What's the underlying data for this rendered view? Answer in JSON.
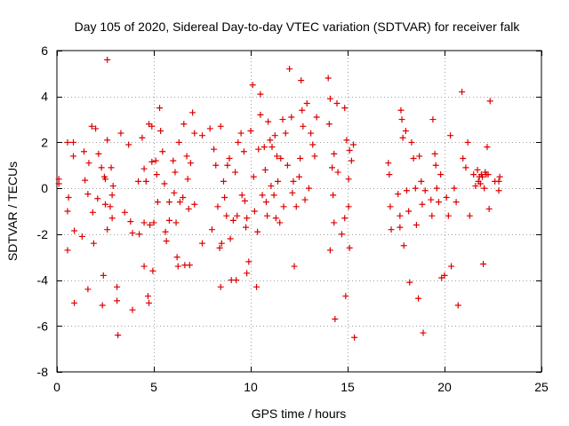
{
  "chart_data": {
    "type": "scatter",
    "title": "Day 105 of 2020, Sidereal Day-to-day VTEC variation (SDTVAR) for receiver falk",
    "xlabel": "GPS time / hours",
    "ylabel": "SDTVAR / TECUs",
    "xlim": [
      0,
      25
    ],
    "ylim": [
      -8,
      6
    ],
    "xticks": [
      0,
      5,
      10,
      15,
      20,
      25
    ],
    "yticks": [
      -8,
      -6,
      -4,
      -2,
      0,
      2,
      4,
      6
    ],
    "grid": true,
    "marker": "plus",
    "color": "#dd0000",
    "series": [
      {
        "name": "SDTVAR",
        "points": [
          [
            0.1,
            0.4
          ],
          [
            0.1,
            0.2
          ],
          [
            0.55,
            2.0
          ],
          [
            0.55,
            -1.0
          ],
          [
            0.55,
            -2.7
          ],
          [
            0.6,
            -0.4
          ],
          [
            0.85,
            2.0
          ],
          [
            0.85,
            1.4
          ],
          [
            0.9,
            -1.85
          ],
          [
            0.9,
            -5.0
          ],
          [
            1.3,
            -2.1
          ],
          [
            1.4,
            1.6
          ],
          [
            1.45,
            0.35
          ],
          [
            1.6,
            -0.25
          ],
          [
            1.6,
            -4.4
          ],
          [
            1.65,
            1.1
          ],
          [
            1.8,
            2.7
          ],
          [
            1.85,
            -1.05
          ],
          [
            1.9,
            -2.4
          ],
          [
            2.0,
            2.6
          ],
          [
            2.1,
            -0.45
          ],
          [
            2.15,
            1.5
          ],
          [
            2.3,
            0.9
          ],
          [
            2.35,
            -5.1
          ],
          [
            2.4,
            -3.8
          ],
          [
            2.45,
            0.5
          ],
          [
            2.5,
            0.4
          ],
          [
            2.5,
            -0.7
          ],
          [
            2.6,
            5.6
          ],
          [
            2.6,
            2.1
          ],
          [
            2.6,
            -1.8
          ],
          [
            2.75,
            -0.8
          ],
          [
            2.8,
            0.9
          ],
          [
            2.85,
            -0.3
          ],
          [
            2.85,
            -1.3
          ],
          [
            2.9,
            0.1
          ],
          [
            3.1,
            -4.3
          ],
          [
            3.1,
            -4.9
          ],
          [
            3.15,
            -6.4
          ],
          [
            3.3,
            2.4
          ],
          [
            3.5,
            -1.05
          ],
          [
            3.7,
            1.9
          ],
          [
            3.8,
            -1.45
          ],
          [
            3.9,
            -5.3
          ],
          [
            3.9,
            -1.95
          ],
          [
            4.2,
            0.3
          ],
          [
            4.25,
            -2.0
          ],
          [
            4.4,
            2.2
          ],
          [
            4.5,
            0.85
          ],
          [
            4.5,
            -3.4
          ],
          [
            4.5,
            -1.5
          ],
          [
            4.6,
            0.3
          ],
          [
            4.7,
            -4.7
          ],
          [
            4.75,
            -5.0
          ],
          [
            4.75,
            2.8
          ],
          [
            4.8,
            -1.6
          ],
          [
            4.9,
            2.7
          ],
          [
            4.9,
            1.15
          ],
          [
            4.95,
            -3.6
          ],
          [
            5.0,
            -1.5
          ],
          [
            5.1,
            1.2
          ],
          [
            5.15,
            0.6
          ],
          [
            5.2,
            -0.6
          ],
          [
            5.3,
            3.5
          ],
          [
            5.35,
            2.5
          ],
          [
            5.45,
            1.6
          ],
          [
            5.55,
            0.2
          ],
          [
            5.6,
            -1.9
          ],
          [
            5.65,
            -2.3
          ],
          [
            5.8,
            -0.6
          ],
          [
            5.8,
            -1.4
          ],
          [
            6.0,
            1.2
          ],
          [
            6.05,
            -0.2
          ],
          [
            6.1,
            0.7
          ],
          [
            6.15,
            -1.5
          ],
          [
            6.2,
            -3.0
          ],
          [
            6.25,
            -3.4
          ],
          [
            6.3,
            2.0
          ],
          [
            6.35,
            -0.6
          ],
          [
            6.5,
            -0.4
          ],
          [
            6.55,
            2.8
          ],
          [
            6.6,
            -3.35
          ],
          [
            6.7,
            1.4
          ],
          [
            6.75,
            0.4
          ],
          [
            6.8,
            -0.9
          ],
          [
            6.85,
            -3.35
          ],
          [
            6.9,
            1.1
          ],
          [
            7.0,
            3.3
          ],
          [
            7.1,
            2.4
          ],
          [
            7.1,
            -0.7
          ],
          [
            7.5,
            2.3
          ],
          [
            7.5,
            -2.4
          ],
          [
            7.9,
            2.6
          ],
          [
            8.0,
            -1.8
          ],
          [
            8.1,
            1.7
          ],
          [
            8.2,
            1.0
          ],
          [
            8.3,
            -0.8
          ],
          [
            8.4,
            -2.6
          ],
          [
            8.45,
            2.7
          ],
          [
            8.45,
            -4.3
          ],
          [
            8.5,
            -2.4
          ],
          [
            8.6,
            0.3
          ],
          [
            8.65,
            -0.4
          ],
          [
            8.75,
            -1.2
          ],
          [
            8.8,
            1.0
          ],
          [
            8.9,
            1.3
          ],
          [
            8.95,
            -2.2
          ],
          [
            9.0,
            -4.0
          ],
          [
            9.1,
            -1.4
          ],
          [
            9.2,
            0.7
          ],
          [
            9.25,
            -4.0
          ],
          [
            9.3,
            -1.2
          ],
          [
            9.35,
            2.0
          ],
          [
            9.5,
            2.4
          ],
          [
            9.55,
            -0.3
          ],
          [
            9.65,
            1.6
          ],
          [
            9.7,
            -0.55
          ],
          [
            9.75,
            -1.7
          ],
          [
            9.8,
            -3.7
          ],
          [
            9.8,
            -1.3
          ],
          [
            9.9,
            -3.2
          ],
          [
            10.0,
            2.5
          ],
          [
            10.1,
            4.5
          ],
          [
            10.15,
            0.5
          ],
          [
            10.2,
            -1.0
          ],
          [
            10.3,
            -4.3
          ],
          [
            10.35,
            -1.9
          ],
          [
            10.4,
            1.7
          ],
          [
            10.5,
            3.2
          ],
          [
            10.5,
            4.1
          ],
          [
            10.6,
            -0.3
          ],
          [
            10.7,
            1.8
          ],
          [
            10.75,
            0.8
          ],
          [
            10.8,
            -0.6
          ],
          [
            10.85,
            -1.2
          ],
          [
            10.9,
            2.9
          ],
          [
            11.0,
            2.1
          ],
          [
            11.05,
            0.1
          ],
          [
            11.1,
            1.8
          ],
          [
            11.2,
            -0.3
          ],
          [
            11.25,
            2.3
          ],
          [
            11.3,
            -1.3
          ],
          [
            11.35,
            1.4
          ],
          [
            11.4,
            0.3
          ],
          [
            11.5,
            -1.5
          ],
          [
            11.55,
            1.3
          ],
          [
            11.65,
            3.0
          ],
          [
            11.7,
            -0.8
          ],
          [
            11.8,
            2.4
          ],
          [
            11.9,
            1.0
          ],
          [
            12.0,
            5.2
          ],
          [
            12.1,
            3.1
          ],
          [
            12.15,
            -0.2
          ],
          [
            12.2,
            0.3
          ],
          [
            12.25,
            -3.4
          ],
          [
            12.35,
            -0.8
          ],
          [
            12.5,
            0.5
          ],
          [
            12.55,
            1.3
          ],
          [
            12.6,
            4.7
          ],
          [
            12.65,
            3.4
          ],
          [
            12.7,
            2.7
          ],
          [
            12.8,
            -0.5
          ],
          [
            12.9,
            3.7
          ],
          [
            13.0,
            0.0
          ],
          [
            13.1,
            2.4
          ],
          [
            13.2,
            1.9
          ],
          [
            13.3,
            1.4
          ],
          [
            13.4,
            3.1
          ],
          [
            14.0,
            4.8
          ],
          [
            14.05,
            2.8
          ],
          [
            14.1,
            3.9
          ],
          [
            14.1,
            -2.7
          ],
          [
            14.2,
            0.9
          ],
          [
            14.25,
            -0.3
          ],
          [
            14.3,
            1.5
          ],
          [
            14.3,
            -1.5
          ],
          [
            14.35,
            -5.7
          ],
          [
            14.45,
            3.7
          ],
          [
            14.5,
            0.7
          ],
          [
            14.7,
            -2.0
          ],
          [
            14.85,
            3.5
          ],
          [
            14.85,
            -1.3
          ],
          [
            14.9,
            -4.7
          ],
          [
            14.95,
            2.1
          ],
          [
            15.05,
            0.4
          ],
          [
            15.05,
            -0.8
          ],
          [
            15.1,
            1.65
          ],
          [
            15.1,
            -2.6
          ],
          [
            15.2,
            1.2
          ],
          [
            15.3,
            1.9
          ],
          [
            15.35,
            -6.5
          ],
          [
            17.1,
            1.1
          ],
          [
            17.15,
            0.6
          ],
          [
            17.2,
            -0.8
          ],
          [
            17.25,
            -1.8
          ],
          [
            17.6,
            -0.25
          ],
          [
            17.7,
            -1.2
          ],
          [
            17.7,
            -1.7
          ],
          [
            17.75,
            3.4
          ],
          [
            17.8,
            3.0
          ],
          [
            17.85,
            2.2
          ],
          [
            17.9,
            -2.5
          ],
          [
            18.0,
            2.5
          ],
          [
            18.05,
            -0.1
          ],
          [
            18.15,
            -1.0
          ],
          [
            18.2,
            -4.1
          ],
          [
            18.3,
            2.0
          ],
          [
            18.4,
            1.3
          ],
          [
            18.5,
            0.0
          ],
          [
            18.55,
            -1.6
          ],
          [
            18.65,
            -4.8
          ],
          [
            18.7,
            1.4
          ],
          [
            18.8,
            0.3
          ],
          [
            18.85,
            -0.7
          ],
          [
            18.9,
            -6.3
          ],
          [
            19.0,
            -0.1
          ],
          [
            19.3,
            -0.5
          ],
          [
            19.35,
            -1.2
          ],
          [
            19.4,
            3.0
          ],
          [
            19.5,
            1.5
          ],
          [
            19.55,
            1.0
          ],
          [
            19.6,
            0.0
          ],
          [
            19.7,
            -0.6
          ],
          [
            19.8,
            0.6
          ],
          [
            19.85,
            -3.9
          ],
          [
            20.0,
            -3.8
          ],
          [
            20.1,
            -0.4
          ],
          [
            20.2,
            -1.2
          ],
          [
            20.3,
            2.3
          ],
          [
            20.35,
            -3.4
          ],
          [
            20.5,
            0.0
          ],
          [
            20.6,
            -0.6
          ],
          [
            20.7,
            -5.1
          ],
          [
            20.9,
            4.2
          ],
          [
            20.95,
            1.3
          ],
          [
            21.1,
            0.9
          ],
          [
            21.2,
            2.0
          ],
          [
            21.3,
            -1.2
          ],
          [
            21.5,
            0.6
          ],
          [
            21.6,
            0.1
          ],
          [
            21.7,
            0.8
          ],
          [
            21.75,
            0.3
          ],
          [
            21.8,
            0.5
          ],
          [
            21.85,
            0.2
          ],
          [
            21.9,
            0.6
          ],
          [
            21.95,
            0.5
          ],
          [
            22.0,
            -3.3
          ],
          [
            22.05,
            0.0
          ],
          [
            22.1,
            0.7
          ],
          [
            22.15,
            0.6
          ],
          [
            22.2,
            1.8
          ],
          [
            22.25,
            0.6
          ],
          [
            22.3,
            -0.9
          ],
          [
            22.35,
            3.8
          ],
          [
            22.6,
            0.3
          ],
          [
            22.8,
            0.3
          ],
          [
            22.8,
            -0.1
          ],
          [
            22.85,
            0.5
          ]
        ]
      }
    ]
  }
}
